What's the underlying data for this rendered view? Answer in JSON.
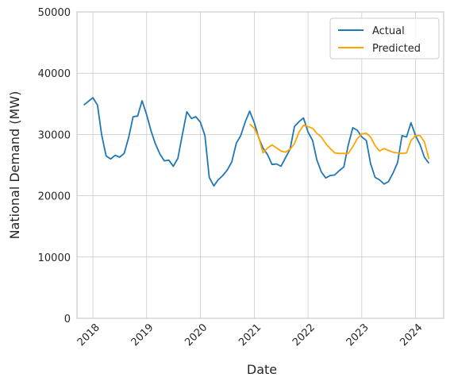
{
  "chart_data": {
    "type": "line",
    "title": "",
    "xlabel": "Date",
    "ylabel": "National Demand (MW)",
    "xlim": [
      "2017-09-15",
      "2024-07-10"
    ],
    "ylim": [
      0,
      50000
    ],
    "yticks": [
      0,
      10000,
      20000,
      30000,
      40000,
      50000
    ],
    "xticks": [
      "2018-01-01",
      "2019-01-01",
      "2020-01-01",
      "2021-01-01",
      "2022-01-01",
      "2023-01-01",
      "2024-01-01"
    ],
    "xtick_labels": [
      "2018",
      "2019",
      "2020",
      "2021",
      "2022",
      "2023",
      "2024"
    ],
    "grid": true,
    "legend_position": "top-right",
    "series": [
      {
        "name": "Actual",
        "color": "#1f77b4",
        "x": [
          "2017-11-01",
          "2017-12-01",
          "2018-01-01",
          "2018-02-01",
          "2018-03-01",
          "2018-04-01",
          "2018-05-01",
          "2018-06-01",
          "2018-07-01",
          "2018-08-01",
          "2018-09-01",
          "2018-10-01",
          "2018-11-01",
          "2018-12-01",
          "2019-01-01",
          "2019-02-01",
          "2019-03-01",
          "2019-04-01",
          "2019-05-01",
          "2019-06-01",
          "2019-07-01",
          "2019-08-01",
          "2019-09-01",
          "2019-10-01",
          "2019-11-01",
          "2019-12-01",
          "2020-01-01",
          "2020-02-01",
          "2020-03-01",
          "2020-04-01",
          "2020-05-01",
          "2020-06-01",
          "2020-07-01",
          "2020-08-01",
          "2020-09-01",
          "2020-10-01",
          "2020-11-01",
          "2020-12-01",
          "2021-01-01",
          "2021-02-01",
          "2021-03-01",
          "2021-04-01",
          "2021-05-01",
          "2021-06-01",
          "2021-07-01",
          "2021-08-01",
          "2021-09-01",
          "2021-10-01",
          "2021-11-01",
          "2021-12-01",
          "2022-01-01",
          "2022-02-01",
          "2022-03-01",
          "2022-04-01",
          "2022-05-01",
          "2022-06-01",
          "2022-07-01",
          "2022-08-01",
          "2022-09-01",
          "2022-10-01",
          "2022-11-01",
          "2022-12-01",
          "2023-01-01",
          "2023-02-01",
          "2023-03-01",
          "2023-04-01",
          "2023-05-01",
          "2023-06-01",
          "2023-07-01",
          "2023-08-01",
          "2023-09-01",
          "2023-10-01",
          "2023-11-01",
          "2023-12-01",
          "2024-01-01",
          "2024-02-01",
          "2024-03-01",
          "2024-04-01"
        ],
        "values": [
          34800,
          35400,
          36000,
          34800,
          30000,
          26500,
          26000,
          26600,
          26300,
          26900,
          29500,
          32900,
          33000,
          35500,
          33200,
          30500,
          28500,
          26800,
          25700,
          25800,
          24800,
          26100,
          30000,
          33700,
          32600,
          32900,
          32000,
          29800,
          23000,
          21600,
          22600,
          23300,
          24200,
          25500,
          28600,
          29800,
          32100,
          33800,
          31900,
          29400,
          27800,
          26700,
          25100,
          25200,
          24800,
          26200,
          27600,
          31300,
          32100,
          32700,
          30400,
          29000,
          25900,
          23900,
          22900,
          23300,
          23400,
          24100,
          24700,
          28300,
          31100,
          30700,
          29600,
          29000,
          25300,
          23000,
          22600,
          21900,
          22300,
          23700,
          25400,
          29800,
          29600,
          31900,
          29800,
          28300,
          26300,
          25300
        ]
      },
      {
        "name": "Predicted",
        "color": "#ffa500",
        "x": [
          "2020-12-01",
          "2021-01-01",
          "2021-02-01",
          "2021-03-01",
          "2021-04-01",
          "2021-05-01",
          "2021-06-01",
          "2021-07-01",
          "2021-08-01",
          "2021-09-01",
          "2021-10-01",
          "2021-11-01",
          "2021-12-01",
          "2022-01-01",
          "2022-02-01",
          "2022-03-01",
          "2022-04-01",
          "2022-05-01",
          "2022-06-01",
          "2022-07-01",
          "2022-08-01",
          "2022-09-01",
          "2022-10-01",
          "2022-11-01",
          "2022-12-01",
          "2023-01-01",
          "2023-02-01",
          "2023-03-01",
          "2023-04-01",
          "2023-05-01",
          "2023-06-01",
          "2023-07-01",
          "2023-08-01",
          "2023-09-01",
          "2023-10-01",
          "2023-11-01",
          "2023-12-01",
          "2024-01-01",
          "2024-02-01",
          "2024-03-01",
          "2024-04-01"
        ],
        "values": [
          31700,
          31000,
          29500,
          27000,
          27800,
          28300,
          27800,
          27300,
          27100,
          27600,
          28500,
          30400,
          31500,
          31300,
          31000,
          30200,
          29600,
          28500,
          27700,
          27000,
          26900,
          26900,
          26900,
          28000,
          29300,
          30100,
          30200,
          29600,
          28200,
          27300,
          27700,
          27400,
          27100,
          27000,
          26900,
          27000,
          29000,
          29800,
          29800,
          28800,
          26000
        ]
      }
    ]
  }
}
